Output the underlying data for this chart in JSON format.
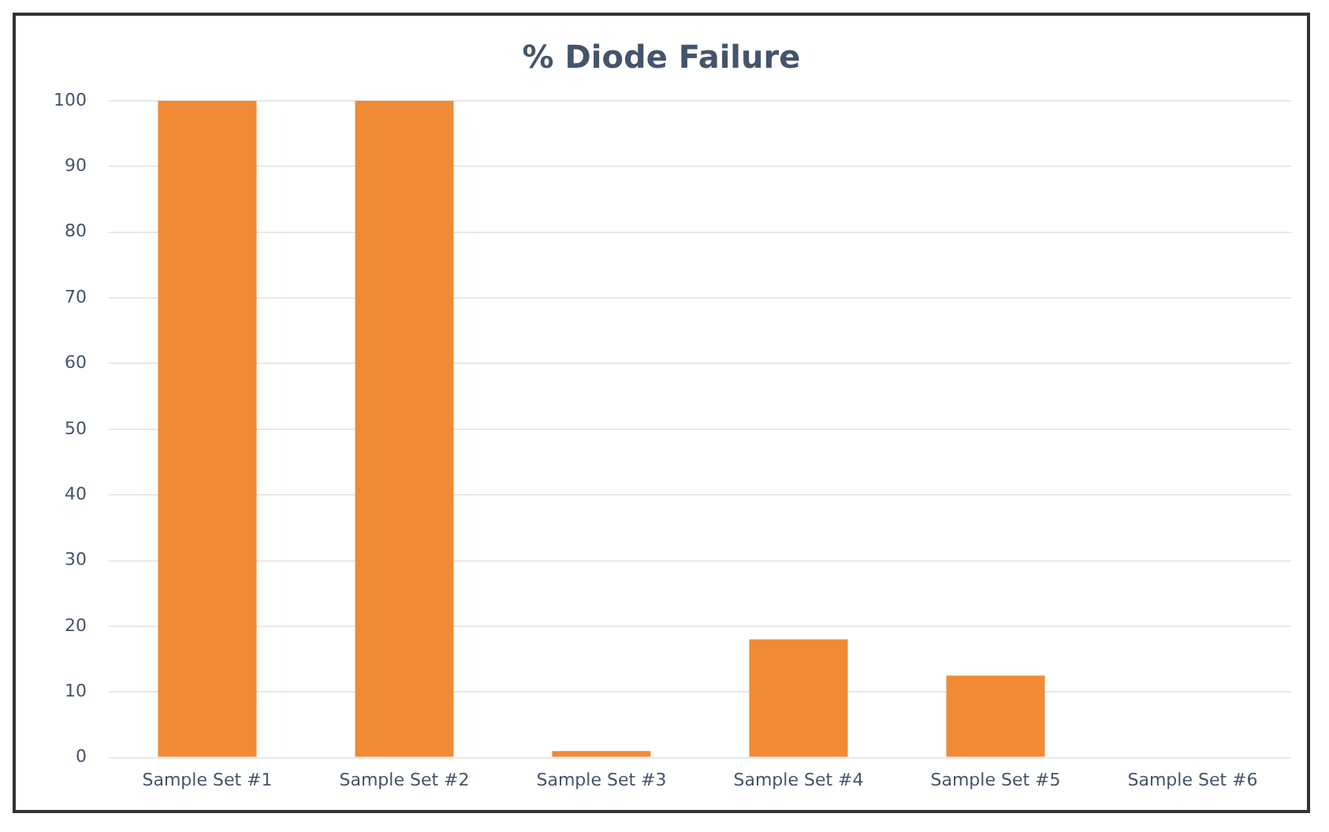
{
  "chart_data": {
    "type": "bar",
    "title": "% Diode Failure",
    "categories": [
      "Sample Set #1",
      "Sample Set #2",
      "Sample Set #3",
      "Sample Set #4",
      "Sample Set #5",
      "Sample Set #6"
    ],
    "values": [
      100,
      100,
      1,
      18,
      12.5,
      0
    ],
    "color": "#f08a35",
    "ylim": [
      0,
      100
    ],
    "yticks": [
      0,
      10,
      20,
      30,
      40,
      50,
      60,
      70,
      80,
      90,
      100
    ],
    "grid": "y"
  }
}
